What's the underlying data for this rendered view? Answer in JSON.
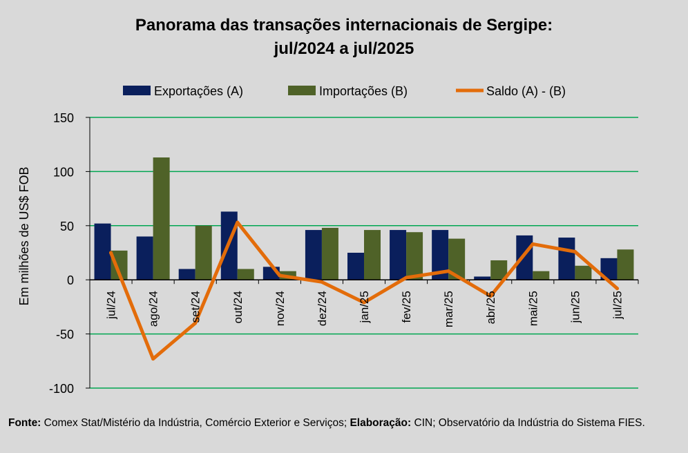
{
  "chart_data": {
    "type": "bar",
    "title": "Panorama das transações internacionais de Sergipe:",
    "subtitle": "jul/2024 a jul/2025",
    "ylabel": "Em milhões de US$ FOB",
    "xlabel": "",
    "ylim": [
      -100,
      150
    ],
    "yticks": [
      150,
      100,
      50,
      0,
      -50,
      -100
    ],
    "ytick_labels": [
      "150",
      "100",
      "50",
      "0",
      "-50",
      "-100"
    ],
    "grid": true,
    "legend_position": "top",
    "categories": [
      "jul/24",
      "ago/24",
      "set/24",
      "out/24",
      "nov/24",
      "dez/24",
      "jan/25",
      "fev/25",
      "mar/25",
      "abr/25",
      "mai/25",
      "jun/25",
      "jul/25"
    ],
    "series": [
      {
        "name": "Exportações (A)",
        "type": "bar",
        "color": "#0a1f5c",
        "values": [
          52,
          40,
          10,
          63,
          12,
          46,
          25,
          46,
          46,
          3,
          41,
          39,
          20
        ]
      },
      {
        "name": "Importações (B)",
        "type": "bar",
        "color": "#4f6228",
        "values": [
          27,
          113,
          50,
          10,
          8,
          48,
          46,
          44,
          38,
          18,
          8,
          13,
          28
        ]
      },
      {
        "name": "Saldo (A) - (B)",
        "type": "line",
        "color": "#e36c0a",
        "values": [
          25,
          -73,
          -40,
          53,
          4,
          -2,
          -21,
          2,
          8,
          -15,
          33,
          26,
          -8
        ]
      }
    ]
  },
  "footer": {
    "source_label": "Fonte:",
    "source_text": "Comex Stat/Mistério da Indústria, Comércio Exterior e Serviços;",
    "elab_label": "Elaboração:",
    "elab_text": "CIN; Observatório da Indústria do Sistema FIES."
  },
  "colors": {
    "background": "#d9d9d9",
    "gridline": "#00a651",
    "axis": "#000000"
  }
}
